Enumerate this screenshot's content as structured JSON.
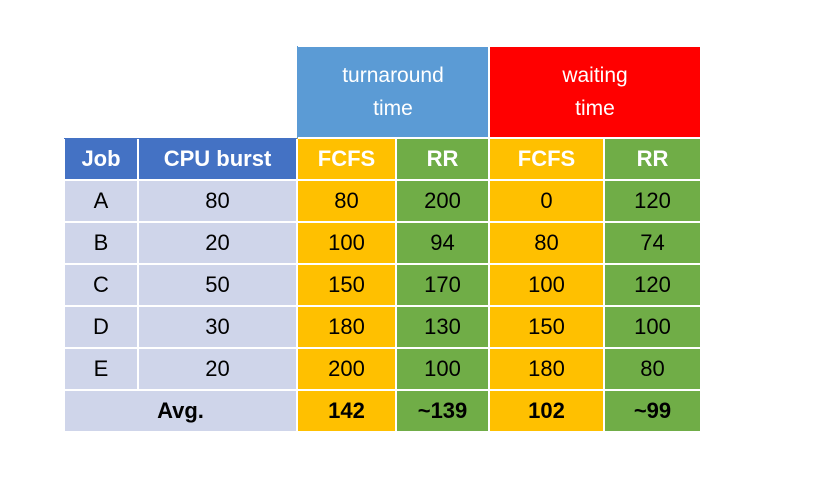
{
  "group_headers": {
    "turnaround_line1": "turnaround",
    "turnaround_line2": "time",
    "waiting_line1": "waiting",
    "waiting_line2": "time"
  },
  "column_headers": {
    "job": "Job",
    "cpu_burst": "CPU burst",
    "turnaround_fcfs": "FCFS",
    "turnaround_rr": "RR",
    "waiting_fcfs": "FCFS",
    "waiting_rr": "RR"
  },
  "rows": [
    {
      "job": "A",
      "cpu_burst": "80",
      "turnaround_fcfs": "80",
      "turnaround_rr": "200",
      "waiting_fcfs": "0",
      "waiting_rr": "120"
    },
    {
      "job": "B",
      "cpu_burst": "20",
      "turnaround_fcfs": "100",
      "turnaround_rr": "94",
      "waiting_fcfs": "80",
      "waiting_rr": "74"
    },
    {
      "job": "C",
      "cpu_burst": "50",
      "turnaround_fcfs": "150",
      "turnaround_rr": "170",
      "waiting_fcfs": "100",
      "waiting_rr": "120"
    },
    {
      "job": "D",
      "cpu_burst": "30",
      "turnaround_fcfs": "180",
      "turnaround_rr": "130",
      "waiting_fcfs": "150",
      "waiting_rr": "100"
    },
    {
      "job": "E",
      "cpu_burst": "20",
      "turnaround_fcfs": "200",
      "turnaround_rr": "100",
      "waiting_fcfs": "180",
      "waiting_rr": "80"
    }
  ],
  "average": {
    "label": "Avg.",
    "turnaround_fcfs": "142",
    "turnaround_rr": "~139",
    "waiting_fcfs": "102",
    "waiting_rr": "~99"
  },
  "colors": {
    "turnaround_group": "#5b9bd5",
    "waiting_group": "#ff0000",
    "header_blue": "#4472c4",
    "fcfs": "#ffc000",
    "rr": "#70ad47",
    "job_cells": "#cfd5ea"
  }
}
